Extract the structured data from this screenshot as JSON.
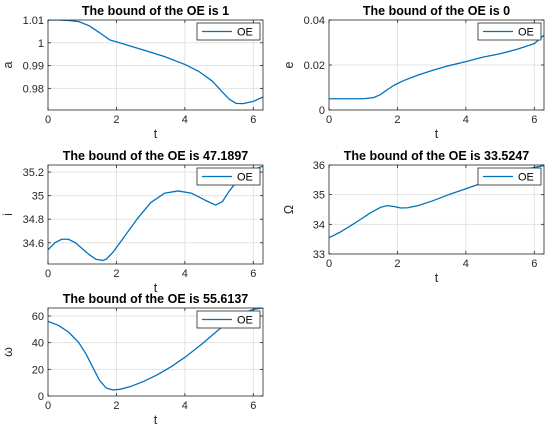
{
  "colors": {
    "line": "#0072BD",
    "grid": "#e3e3e3",
    "axis": "#262626"
  },
  "chart_data": [
    {
      "type": "line",
      "title": "The bound of the OE is 1",
      "xlabel": "t",
      "ylabel": "a",
      "xlim": [
        0,
        6.2832
      ],
      "ylim": [
        0.9705,
        1.01
      ],
      "xticks": [
        0,
        2,
        4,
        6
      ],
      "xticklabels": [
        "0",
        "2",
        "4",
        "6"
      ],
      "yticks": [
        0.98,
        0.99,
        1,
        1.01
      ],
      "yticklabels": [
        "0.98",
        "0.99",
        "1",
        "1.01"
      ],
      "grid": true,
      "legend": "top-right",
      "series": [
        {
          "name": "OE",
          "x": [
            0,
            0.3,
            0.6,
            0.9,
            1.2,
            1.5,
            1.8,
            2.2,
            2.8,
            3.4,
            4.0,
            4.4,
            4.8,
            5.1,
            5.3,
            5.5,
            5.7,
            6.0,
            6.2832
          ],
          "y": [
            1.01,
            1.01,
            1.0098,
            1.0093,
            1.0075,
            1.0045,
            1.0013,
            0.9995,
            0.9968,
            0.994,
            0.9905,
            0.9875,
            0.9832,
            0.9783,
            0.9752,
            0.9734,
            0.9733,
            0.9743,
            0.9762
          ]
        }
      ]
    },
    {
      "type": "line",
      "title": "The bound of the OE is 0",
      "xlabel": "t",
      "ylabel": "e",
      "xlim": [
        0,
        6.2832
      ],
      "ylim": [
        0,
        0.04
      ],
      "xticks": [
        0,
        2,
        4,
        6
      ],
      "xticklabels": [
        "0",
        "2",
        "4",
        "6"
      ],
      "yticks": [
        0,
        0.02,
        0.04
      ],
      "yticklabels": [
        "0",
        "0.02",
        "0.04"
      ],
      "grid": true,
      "legend": "top-right",
      "series": [
        {
          "name": "OE",
          "x": [
            0,
            0.5,
            1.0,
            1.3,
            1.5,
            1.7,
            1.9,
            2.2,
            2.6,
            3.0,
            3.5,
            4.0,
            4.5,
            5.0,
            5.5,
            6.0,
            6.2832
          ],
          "y": [
            0.005,
            0.005,
            0.005,
            0.0055,
            0.0068,
            0.009,
            0.011,
            0.0132,
            0.0155,
            0.0175,
            0.0197,
            0.0215,
            0.0235,
            0.025,
            0.027,
            0.0295,
            0.0333
          ]
        }
      ]
    },
    {
      "type": "line",
      "title": "The bound of the OE is 47.1897",
      "xlabel": "t",
      "ylabel": "i",
      "xlim": [
        0,
        6.2832
      ],
      "ylim": [
        34.42,
        35.26
      ],
      "xticks": [
        0,
        2,
        4,
        6
      ],
      "xticklabels": [
        "0",
        "2",
        "4",
        "6"
      ],
      "yticks": [
        34.6,
        34.8,
        35,
        35.2
      ],
      "yticklabels": [
        "34.6",
        "34.8",
        "35",
        "35.2"
      ],
      "grid": true,
      "legend": "top-right",
      "series": [
        {
          "name": "OE",
          "x": [
            0,
            0.2,
            0.4,
            0.6,
            0.8,
            1.0,
            1.2,
            1.4,
            1.6,
            1.7,
            1.9,
            2.2,
            2.6,
            3.0,
            3.4,
            3.8,
            4.2,
            4.6,
            4.9,
            5.1,
            5.3,
            5.6,
            6.0,
            6.2832
          ],
          "y": [
            34.54,
            34.6,
            34.63,
            34.63,
            34.6,
            34.55,
            34.5,
            34.46,
            34.45,
            34.46,
            34.52,
            34.64,
            34.8,
            34.94,
            35.02,
            35.04,
            35.02,
            34.96,
            34.92,
            34.95,
            35.04,
            35.15,
            35.22,
            35.25
          ]
        }
      ]
    },
    {
      "type": "line",
      "title": "The bound of the OE is 33.5247",
      "xlabel": "t",
      "ylabel": "Ω",
      "xlim": [
        0,
        6.2832
      ],
      "ylim": [
        33,
        36
      ],
      "xticks": [
        0,
        2,
        4,
        6
      ],
      "xticklabels": [
        "0",
        "2",
        "4",
        "6"
      ],
      "yticks": [
        33,
        34,
        35,
        36
      ],
      "yticklabels": [
        "33",
        "34",
        "35",
        "36"
      ],
      "grid": true,
      "legend": "top-right",
      "series": [
        {
          "name": "OE",
          "x": [
            0,
            0.3,
            0.6,
            0.9,
            1.2,
            1.5,
            1.7,
            1.9,
            2.1,
            2.3,
            2.6,
            3.0,
            3.5,
            4.0,
            4.5,
            5.0,
            5.5,
            6.0,
            6.2832
          ],
          "y": [
            33.55,
            33.72,
            33.93,
            34.15,
            34.38,
            34.57,
            34.63,
            34.6,
            34.55,
            34.56,
            34.63,
            34.78,
            35.0,
            35.2,
            35.4,
            35.57,
            35.76,
            35.92,
            35.98
          ]
        }
      ]
    },
    {
      "type": "line",
      "title": "The bound of the OE is 55.6137",
      "xlabel": "t",
      "ylabel": "ω",
      "xlim": [
        0,
        6.2832
      ],
      "ylim": [
        0,
        66
      ],
      "xticks": [
        0,
        2,
        4,
        6
      ],
      "xticklabels": [
        "0",
        "2",
        "4",
        "6"
      ],
      "yticks": [
        0,
        20,
        40,
        60
      ],
      "yticklabels": [
        "0",
        "20",
        "40",
        "60"
      ],
      "grid": true,
      "legend": "top-right",
      "series": [
        {
          "name": "OE",
          "x": [
            0,
            0.3,
            0.6,
            0.9,
            1.1,
            1.3,
            1.5,
            1.7,
            1.9,
            2.1,
            2.4,
            2.8,
            3.2,
            3.6,
            4.0,
            4.5,
            5.0,
            5.5,
            6.0,
            6.2832
          ],
          "y": [
            56,
            53,
            48,
            40,
            32,
            22,
            12,
            6,
            4.5,
            5,
            7,
            11,
            16,
            22,
            29,
            39,
            50,
            60,
            65,
            66
          ]
        }
      ]
    }
  ]
}
